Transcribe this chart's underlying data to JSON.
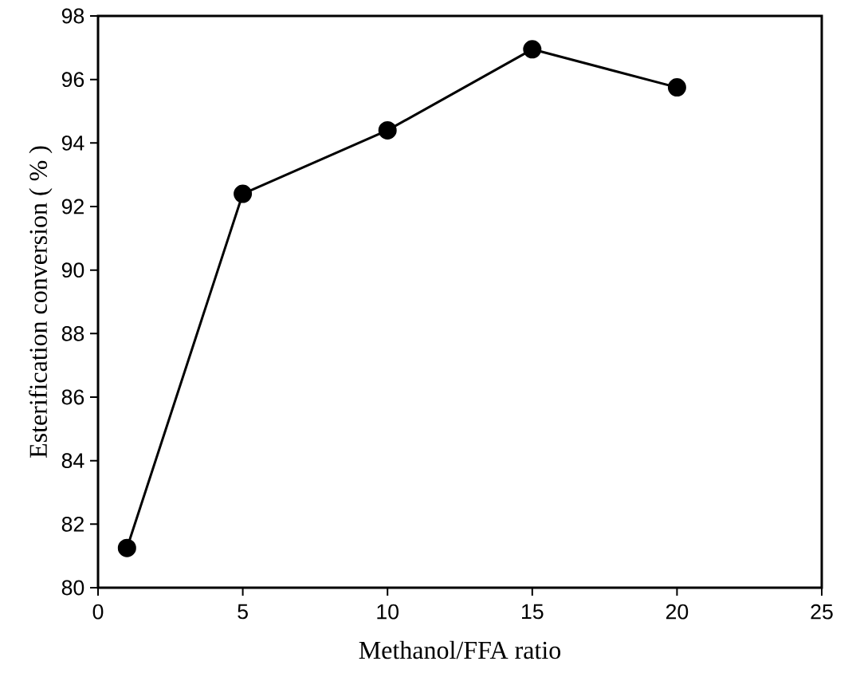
{
  "chart_data": {
    "type": "line",
    "xlabel": "Methanol/FFA ratio",
    "ylabel": "Esterification conversion ( % )",
    "x": [
      1,
      5,
      10,
      15,
      20
    ],
    "series": [
      {
        "color": "#000000",
        "values": [
          81.25,
          92.4,
          94.4,
          96.95,
          95.75
        ]
      }
    ],
    "xlim": [
      0,
      25
    ],
    "xticks": [
      0,
      5,
      10,
      15,
      20,
      25
    ],
    "ylim": [
      80,
      98
    ],
    "yticks": [
      80,
      82,
      84,
      86,
      88,
      90,
      92,
      94,
      96,
      98
    ],
    "marker": "circle",
    "line_style": "solid"
  }
}
